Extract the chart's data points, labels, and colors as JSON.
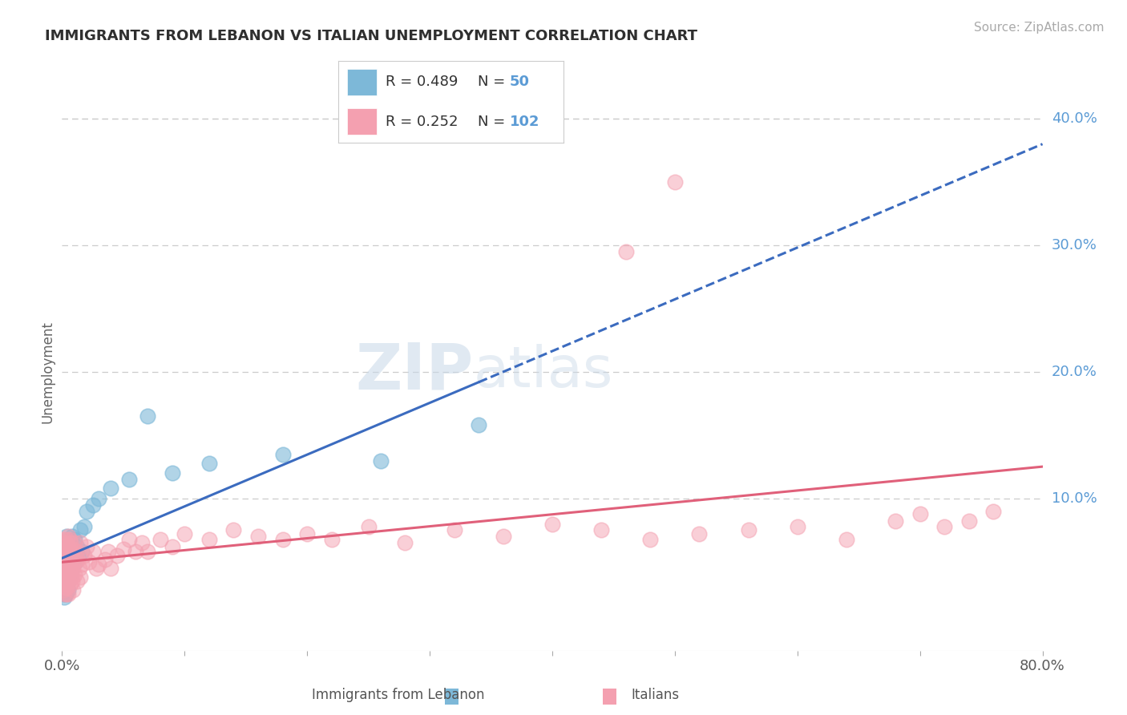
{
  "title": "IMMIGRANTS FROM LEBANON VS ITALIAN UNEMPLOYMENT CORRELATION CHART",
  "source": "Source: ZipAtlas.com",
  "ylabel": "Unemployment",
  "xlim": [
    0.0,
    0.8
  ],
  "ylim": [
    -0.02,
    0.42
  ],
  "plot_ylim": [
    -0.02,
    0.42
  ],
  "ytick_positions": [
    0.1,
    0.2,
    0.3,
    0.4
  ],
  "ytick_labels": [
    "10.0%",
    "20.0%",
    "30.0%",
    "40.0%"
  ],
  "background_color": "#ffffff",
  "grid_color": "#cccccc",
  "blue_color": "#7db8d8",
  "pink_color": "#f4a0b0",
  "blue_line_color": "#3b6bbf",
  "pink_line_color": "#e0607a",
  "legend_x_label": "Immigrants from Lebanon",
  "legend_x_label2": "Italians",
  "blue_scatter_x": [
    0.001,
    0.001,
    0.001,
    0.001,
    0.002,
    0.002,
    0.002,
    0.002,
    0.002,
    0.002,
    0.003,
    0.003,
    0.003,
    0.003,
    0.003,
    0.004,
    0.004,
    0.004,
    0.004,
    0.005,
    0.005,
    0.005,
    0.005,
    0.005,
    0.006,
    0.006,
    0.006,
    0.007,
    0.007,
    0.008,
    0.008,
    0.009,
    0.01,
    0.011,
    0.012,
    0.013,
    0.015,
    0.016,
    0.018,
    0.02,
    0.025,
    0.03,
    0.04,
    0.055,
    0.07,
    0.09,
    0.12,
    0.18,
    0.26,
    0.34
  ],
  "blue_scatter_y": [
    0.04,
    0.055,
    0.03,
    0.025,
    0.06,
    0.045,
    0.038,
    0.028,
    0.048,
    0.022,
    0.058,
    0.042,
    0.035,
    0.052,
    0.025,
    0.048,
    0.07,
    0.03,
    0.055,
    0.04,
    0.065,
    0.035,
    0.055,
    0.028,
    0.06,
    0.045,
    0.038,
    0.058,
    0.042,
    0.07,
    0.05,
    0.06,
    0.068,
    0.05,
    0.062,
    0.055,
    0.075,
    0.058,
    0.078,
    0.09,
    0.095,
    0.1,
    0.108,
    0.115,
    0.165,
    0.12,
    0.128,
    0.135,
    0.13,
    0.158
  ],
  "pink_scatter_x": [
    0.0005,
    0.001,
    0.001,
    0.001,
    0.001,
    0.001,
    0.0015,
    0.002,
    0.002,
    0.002,
    0.002,
    0.002,
    0.002,
    0.002,
    0.003,
    0.003,
    0.003,
    0.003,
    0.003,
    0.003,
    0.003,
    0.003,
    0.004,
    0.004,
    0.004,
    0.004,
    0.004,
    0.005,
    0.005,
    0.005,
    0.005,
    0.005,
    0.005,
    0.005,
    0.006,
    0.006,
    0.006,
    0.006,
    0.007,
    0.007,
    0.007,
    0.007,
    0.008,
    0.008,
    0.008,
    0.008,
    0.009,
    0.009,
    0.009,
    0.01,
    0.01,
    0.01,
    0.011,
    0.012,
    0.012,
    0.013,
    0.014,
    0.015,
    0.015,
    0.016,
    0.018,
    0.02,
    0.022,
    0.025,
    0.028,
    0.03,
    0.035,
    0.038,
    0.04,
    0.045,
    0.05,
    0.055,
    0.06,
    0.065,
    0.07,
    0.08,
    0.09,
    0.1,
    0.12,
    0.14,
    0.16,
    0.18,
    0.2,
    0.22,
    0.25,
    0.28,
    0.32,
    0.36,
    0.4,
    0.44,
    0.48,
    0.52,
    0.56,
    0.6,
    0.64,
    0.68,
    0.7,
    0.72,
    0.74,
    0.76,
    0.5,
    0.46
  ],
  "pink_scatter_y": [
    0.042,
    0.058,
    0.045,
    0.035,
    0.065,
    0.028,
    0.05,
    0.062,
    0.038,
    0.055,
    0.048,
    0.032,
    0.068,
    0.025,
    0.06,
    0.045,
    0.038,
    0.055,
    0.03,
    0.065,
    0.05,
    0.035,
    0.058,
    0.042,
    0.03,
    0.068,
    0.025,
    0.055,
    0.04,
    0.062,
    0.048,
    0.035,
    0.07,
    0.025,
    0.052,
    0.042,
    0.038,
    0.068,
    0.058,
    0.045,
    0.032,
    0.065,
    0.048,
    0.038,
    0.058,
    0.035,
    0.06,
    0.045,
    0.028,
    0.055,
    0.04,
    0.065,
    0.05,
    0.058,
    0.035,
    0.052,
    0.045,
    0.038,
    0.065,
    0.048,
    0.055,
    0.062,
    0.05,
    0.058,
    0.045,
    0.048,
    0.052,
    0.058,
    0.045,
    0.055,
    0.06,
    0.068,
    0.058,
    0.065,
    0.058,
    0.068,
    0.062,
    0.072,
    0.068,
    0.075,
    0.07,
    0.068,
    0.072,
    0.068,
    0.078,
    0.065,
    0.075,
    0.07,
    0.08,
    0.075,
    0.068,
    0.072,
    0.075,
    0.078,
    0.068,
    0.082,
    0.088,
    0.078,
    0.082,
    0.09,
    0.35,
    0.295
  ]
}
